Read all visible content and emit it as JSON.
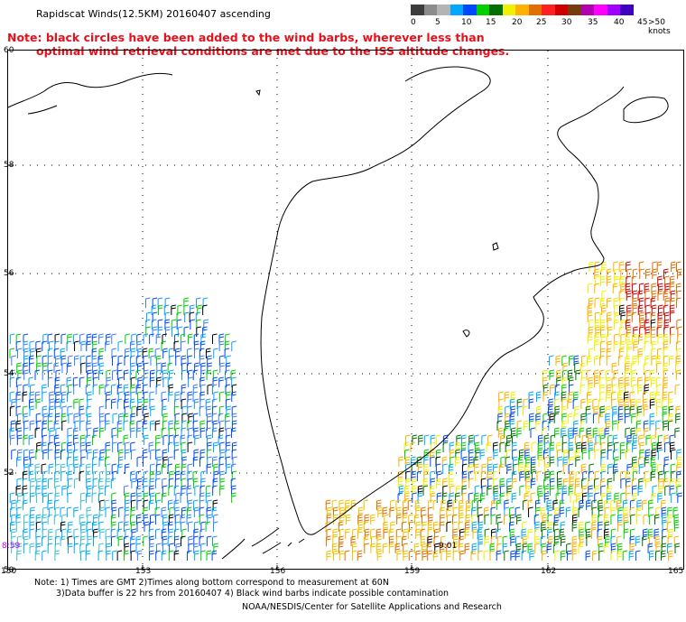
{
  "title": "Rapidscat Winds(12.5KM) 20160407 ascending",
  "note_line1": "Note: black circles have been added to the wind barbs, wherever less than",
  "note_line2": "optimal wind retrieval conditions are met due to the ISS altitude changes.",
  "colorbar": {
    "colors": [
      "#3c3c3c",
      "#8c8c8c",
      "#b4b4b4",
      "#00a8ff",
      "#0048ff",
      "#00d000",
      "#007000",
      "#f0f000",
      "#ffb000",
      "#e07000",
      "#ff2020",
      "#d00000",
      "#7a3a10",
      "#b000b0",
      "#ff00ff",
      "#a000ff",
      "#4000c0"
    ],
    "labels": [
      "0",
      "5",
      "10",
      "15",
      "20",
      "25",
      "30",
      "35",
      "40",
      "45",
      ">50 knots"
    ]
  },
  "latitudes": [
    "60",
    "58",
    "56",
    "54",
    "52",
    "50"
  ],
  "longitudes": [
    "150",
    "153",
    "156",
    "159",
    "162",
    "165"
  ],
  "time_labels": [
    "8:59",
    "9:01"
  ],
  "footer": {
    "line1": "Note: 1) Times are GMT 2)Times along bottom correspond to measurement at 60N",
    "line2": "3)Data buffer is 22 hrs from 20160407 4) Black wind barbs indicate possible contamination",
    "line3": "NOAA/NESDIS/Center for Satellite Applications and Research"
  }
}
